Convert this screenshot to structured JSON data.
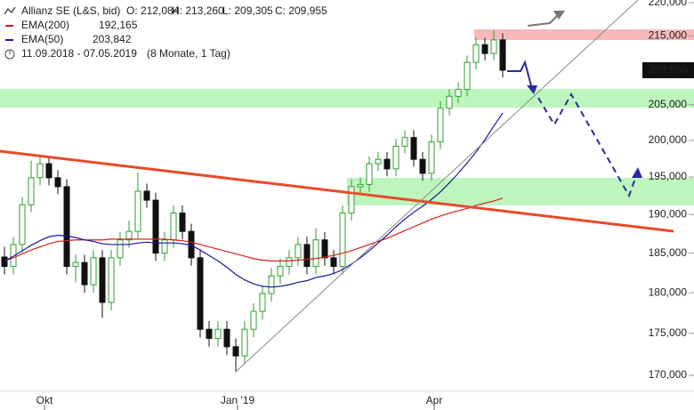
{
  "chart_data": {
    "type": "candlestick",
    "title": "Allianz SE (L&S, bid)",
    "ohlc_text": [
      "O: 212,084",
      "H: 213,260",
      "L: 209,305",
      "C: 209,955"
    ],
    "period": "11.09.2018 - 07.05.2019",
    "period_note": "(8 Monate, 1 Tag)",
    "log_scale": true,
    "ylim": [
      170000,
      220000
    ],
    "yticks": [
      {
        "value": 170000,
        "label": "170,000"
      },
      {
        "value": 175000,
        "label": "175,000"
      },
      {
        "value": 180000,
        "label": "180,000"
      },
      {
        "value": 185000,
        "label": "185,000"
      },
      {
        "value": 190000,
        "label": "190,000"
      },
      {
        "value": 195000,
        "label": "195,000"
      },
      {
        "value": 200000,
        "label": "200,000"
      },
      {
        "value": 205000,
        "label": "205,000"
      },
      {
        "value": 215000,
        "label": "215,000"
      },
      {
        "value": 220000,
        "label": "220,000"
      }
    ],
    "xticks": [
      {
        "value": 4.5,
        "label": "Okt"
      },
      {
        "value": 26.2,
        "label": "Jan '19"
      },
      {
        "value": 48.3,
        "label": "Apr"
      }
    ],
    "last_price": {
      "value": 209955,
      "label": "209,955"
    },
    "up_color": "#2e9e2e",
    "down_color": "#111111",
    "candles": [
      [
        184500,
        185800,
        182300,
        183300
      ],
      [
        183300,
        187100,
        182300,
        186100
      ],
      [
        186100,
        192300,
        185100,
        191300
      ],
      [
        191300,
        197200,
        190300,
        194900
      ],
      [
        194900,
        197800,
        193900,
        196800
      ],
      [
        196800,
        197800,
        193900,
        194900
      ],
      [
        194900,
        195900,
        192700,
        193700
      ],
      [
        193700,
        194700,
        182300,
        183300
      ],
      [
        183300,
        184800,
        181300,
        183800
      ],
      [
        183800,
        184800,
        180000,
        181000
      ],
      [
        181000,
        185400,
        180000,
        184400
      ],
      [
        184400,
        185400,
        176900,
        178800
      ],
      [
        178800,
        185400,
        177800,
        184400
      ],
      [
        184400,
        187700,
        183400,
        186700
      ],
      [
        186700,
        189200,
        185700,
        187800
      ],
      [
        187800,
        195600,
        186800,
        193100
      ],
      [
        193100,
        194100,
        190900,
        191900
      ],
      [
        191900,
        192900,
        184000,
        185000
      ],
      [
        185000,
        187700,
        184000,
        186700
      ],
      [
        186700,
        191200,
        185700,
        190200
      ],
      [
        190200,
        191200,
        186800,
        187800
      ],
      [
        187800,
        188800,
        183400,
        184400
      ],
      [
        184400,
        185400,
        174500,
        175500
      ],
      [
        175500,
        176500,
        173400,
        174400
      ],
      [
        174400,
        176500,
        173400,
        175500
      ],
      [
        175500,
        176500,
        172400,
        173400
      ],
      [
        173400,
        174400,
        170400,
        172300
      ],
      [
        172300,
        176500,
        171300,
        175500
      ],
      [
        175500,
        178700,
        174500,
        177700
      ],
      [
        177700,
        180900,
        176700,
        179900
      ],
      [
        179900,
        183100,
        178900,
        182100
      ],
      [
        182100,
        184300,
        181100,
        183300
      ],
      [
        183300,
        185400,
        182300,
        184400
      ],
      [
        184400,
        187100,
        183400,
        186100
      ],
      [
        186100,
        187100,
        182300,
        183300
      ],
      [
        183300,
        188200,
        182300,
        186700
      ],
      [
        186700,
        187700,
        183400,
        184400
      ],
      [
        184400,
        185400,
        182300,
        183300
      ],
      [
        183300,
        191200,
        182300,
        190200
      ],
      [
        190200,
        194700,
        189200,
        193700
      ],
      [
        193700,
        195000,
        192700,
        194000
      ],
      [
        194000,
        197800,
        193000,
        196800
      ],
      [
        196800,
        198400,
        195800,
        197400
      ],
      [
        197400,
        198400,
        195100,
        196100
      ],
      [
        196100,
        200200,
        195100,
        199200
      ],
      [
        199200,
        201400,
        198200,
        200400
      ],
      [
        200400,
        201400,
        196400,
        197400
      ],
      [
        197400,
        198400,
        194500,
        195500
      ],
      [
        195500,
        200800,
        194500,
        199800
      ],
      [
        199800,
        205500,
        198800,
        204500
      ],
      [
        204500,
        207200,
        203500,
        206200
      ],
      [
        206200,
        208200,
        205200,
        207200
      ],
      [
        207200,
        212100,
        206200,
        211100
      ],
      [
        211100,
        214700,
        210100,
        213700
      ],
      [
        213700,
        214700,
        211400,
        212400
      ],
      [
        212400,
        215800,
        211400,
        214400
      ],
      [
        214400,
        215400,
        208900,
        209955
      ]
    ],
    "series": [
      {
        "name": "EMA(200)",
        "legend_value": "192,165",
        "color": "#d42020",
        "values": [
          184000,
          184400,
          184900,
          185400,
          185800,
          186200,
          186500,
          186600,
          186700,
          186700,
          186700,
          186700,
          186800,
          186800,
          186800,
          186800,
          186800,
          186800,
          186800,
          186700,
          186600,
          186400,
          186100,
          185800,
          185500,
          185200,
          184900,
          184600,
          184300,
          184100,
          184000,
          184000,
          184000,
          184100,
          184200,
          184300,
          184500,
          184700,
          185000,
          185300,
          185700,
          186100,
          186500,
          186900,
          187400,
          187900,
          188400,
          188900,
          189400,
          189800,
          190200,
          190500,
          190800,
          191200,
          191500,
          191800,
          192165
        ]
      },
      {
        "name": "EMA(50)",
        "legend_value": "203,842",
        "color": "#1a1a9a",
        "values": [
          184000,
          184600,
          185300,
          186000,
          186600,
          187100,
          187300,
          187200,
          187000,
          186700,
          186500,
          186200,
          186100,
          186100,
          186100,
          186300,
          186400,
          186300,
          186300,
          186300,
          186200,
          186000,
          185400,
          184700,
          184000,
          183200,
          182300,
          181600,
          181100,
          180800,
          180700,
          180800,
          181000,
          181300,
          181500,
          181900,
          182100,
          182400,
          182900,
          183600,
          184400,
          185300,
          186300,
          187300,
          188400,
          189400,
          190300,
          191100,
          192000,
          193000,
          194200,
          195500,
          196900,
          198400,
          200100,
          202000,
          203842
        ]
      }
    ]
  }
}
